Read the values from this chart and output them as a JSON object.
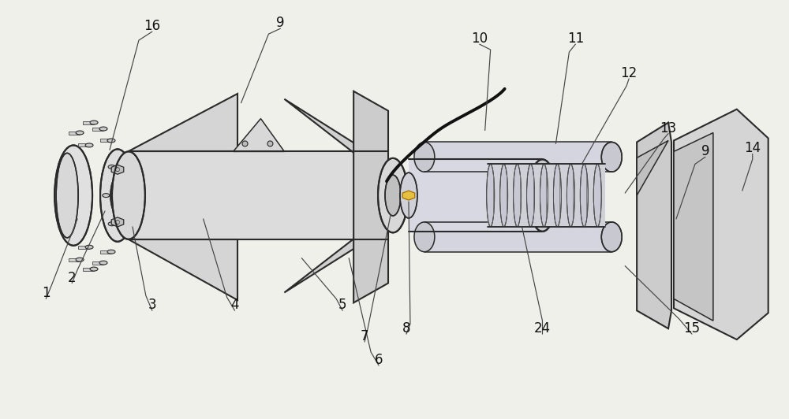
{
  "background_color": "#f0f0eb",
  "line_color": "#2a2a2a",
  "fig_width": 10.0,
  "fig_height": 5.32,
  "label_params": [
    [
      "16",
      192,
      32,
      175,
      50,
      138,
      190
    ],
    [
      "9",
      355,
      28,
      340,
      42,
      305,
      130
    ],
    [
      "10",
      608,
      48,
      622,
      62,
      615,
      165
    ],
    [
      "11",
      730,
      48,
      722,
      65,
      705,
      182
    ],
    [
      "12",
      798,
      92,
      795,
      108,
      738,
      208
    ],
    [
      "13",
      848,
      162,
      842,
      176,
      793,
      245
    ],
    [
      "9",
      895,
      192,
      882,
      208,
      858,
      278
    ],
    [
      "14",
      955,
      188,
      955,
      202,
      942,
      242
    ],
    [
      "15",
      878,
      418,
      862,
      406,
      793,
      338
    ],
    [
      "24",
      688,
      418,
      688,
      408,
      662,
      288
    ],
    [
      "8",
      515,
      418,
      520,
      412,
      518,
      256
    ],
    [
      "7",
      462,
      428,
      466,
      418,
      495,
      273
    ],
    [
      "6",
      480,
      458,
      470,
      448,
      442,
      328
    ],
    [
      "5",
      434,
      388,
      426,
      380,
      382,
      328
    ],
    [
      "4",
      297,
      388,
      287,
      378,
      257,
      278
    ],
    [
      "3",
      192,
      388,
      184,
      376,
      167,
      288
    ],
    [
      "2",
      90,
      353,
      97,
      343,
      132,
      268
    ],
    [
      "1",
      57,
      373,
      64,
      363,
      97,
      278
    ]
  ]
}
